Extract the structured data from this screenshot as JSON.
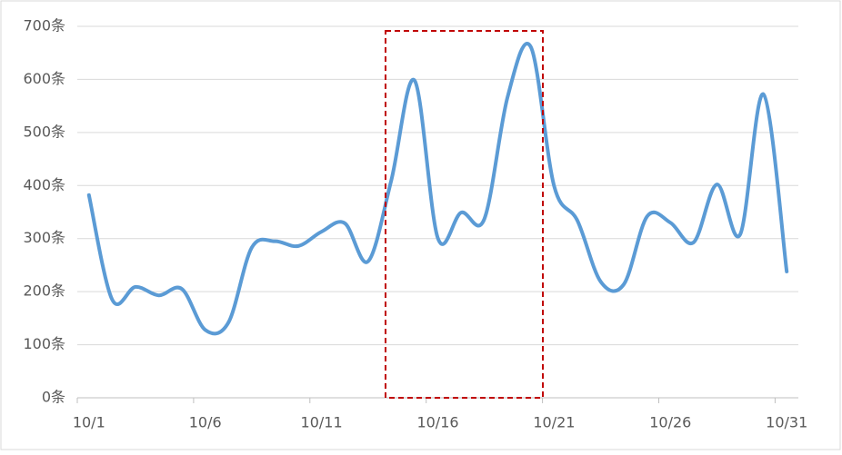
{
  "chart_data": {
    "type": "line",
    "categories": [
      "10/1",
      null,
      null,
      null,
      null,
      "10/6",
      null,
      null,
      null,
      null,
      "10/11",
      null,
      null,
      null,
      null,
      "10/16",
      null,
      null,
      null,
      null,
      "10/21",
      null,
      null,
      null,
      null,
      "10/26",
      null,
      null,
      null,
      null,
      "10/31"
    ],
    "series": [
      {
        "color": "#5b9bd5",
        "values": [
          382,
          185,
          209,
          193,
          205,
          128,
          142,
          283,
          295,
          286,
          313,
          329,
          257,
          410,
          598,
          301,
          349,
          337,
          567,
          661,
          399,
          334,
          219,
          214,
          342,
          330,
          293,
          402,
          308,
          572,
          238
        ]
      }
    ],
    "ylim": [
      0,
      700
    ],
    "yticks": [
      {
        "value": 0,
        "label": "0条"
      },
      {
        "value": 100,
        "label": "100条"
      },
      {
        "value": 200,
        "label": "200条"
      },
      {
        "value": 300,
        "label": "300条"
      },
      {
        "value": 400,
        "label": "400条"
      },
      {
        "value": 500,
        "label": "500条"
      },
      {
        "value": 600,
        "label": "600条"
      },
      {
        "value": 700,
        "label": "700条"
      }
    ],
    "grid": true
  }
}
